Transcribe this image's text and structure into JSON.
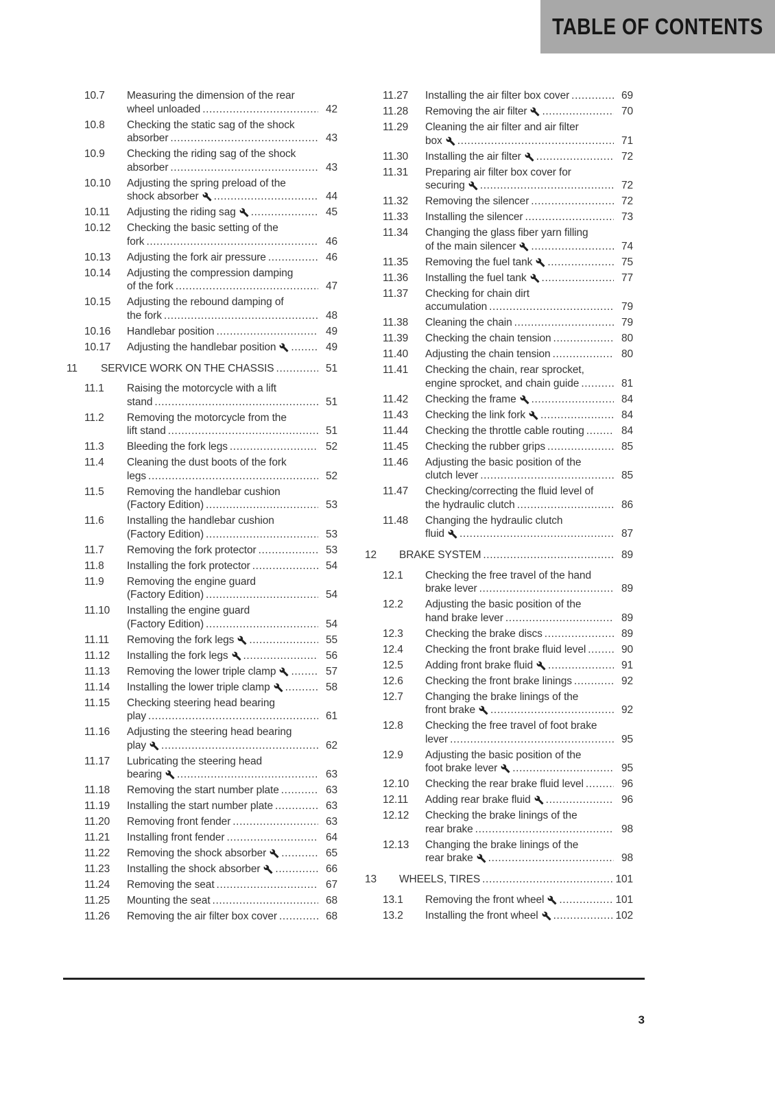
{
  "header": {
    "title": "TABLE OF CONTENTS"
  },
  "page_number": "3",
  "icons": {
    "wrench": "wrench-icon"
  },
  "columns": {
    "left": [
      {
        "type": "entry",
        "num": "10.7",
        "lines": [
          "Measuring the dimension of the rear",
          "wheel unloaded"
        ],
        "wrench": false,
        "page": "42"
      },
      {
        "type": "entry",
        "num": "10.8",
        "lines": [
          "Checking the static sag of the shock",
          "absorber"
        ],
        "wrench": false,
        "page": "43"
      },
      {
        "type": "entry",
        "num": "10.9",
        "lines": [
          "Checking the riding sag of the shock",
          "absorber"
        ],
        "wrench": false,
        "page": "43"
      },
      {
        "type": "entry",
        "num": "10.10",
        "lines": [
          "Adjusting the spring preload of the",
          "shock absorber"
        ],
        "wrench": true,
        "page": "44"
      },
      {
        "type": "entry",
        "num": "10.11",
        "lines": [
          "Adjusting the riding sag"
        ],
        "wrench": true,
        "page": "45"
      },
      {
        "type": "entry",
        "num": "10.12",
        "lines": [
          "Checking the basic setting of the",
          "fork"
        ],
        "wrench": false,
        "page": "46"
      },
      {
        "type": "entry",
        "num": "10.13",
        "lines": [
          "Adjusting the fork air pressure"
        ],
        "wrench": false,
        "page": "46"
      },
      {
        "type": "entry",
        "num": "10.14",
        "lines": [
          "Adjusting the compression damping",
          "of the fork"
        ],
        "wrench": false,
        "page": "47"
      },
      {
        "type": "entry",
        "num": "10.15",
        "lines": [
          "Adjusting the rebound damping of",
          "the fork"
        ],
        "wrench": false,
        "page": "48"
      },
      {
        "type": "entry",
        "num": "10.16",
        "lines": [
          "Handlebar position"
        ],
        "wrench": false,
        "page": "49"
      },
      {
        "type": "entry",
        "num": "10.17",
        "lines": [
          "Adjusting the handlebar position"
        ],
        "wrench": true,
        "page": "49"
      },
      {
        "type": "chapter",
        "num": "11",
        "title": "SERVICE WORK ON THE CHASSIS",
        "page": "51"
      },
      {
        "type": "entry",
        "num": "11.1",
        "lines": [
          "Raising the motorcycle with a lift",
          "stand"
        ],
        "wrench": false,
        "page": "51"
      },
      {
        "type": "entry",
        "num": "11.2",
        "lines": [
          "Removing the motorcycle from the",
          "lift stand"
        ],
        "wrench": false,
        "page": "51"
      },
      {
        "type": "entry",
        "num": "11.3",
        "lines": [
          "Bleeding the fork legs"
        ],
        "wrench": false,
        "page": "52"
      },
      {
        "type": "entry",
        "num": "11.4",
        "lines": [
          "Cleaning the dust boots of the fork",
          "legs"
        ],
        "wrench": false,
        "page": "52"
      },
      {
        "type": "entry",
        "num": "11.5",
        "lines": [
          "Removing the handlebar cushion",
          "(Factory Edition)"
        ],
        "wrench": false,
        "page": "53"
      },
      {
        "type": "entry",
        "num": "11.6",
        "lines": [
          "Installing the handlebar cushion",
          "(Factory Edition)"
        ],
        "wrench": false,
        "page": "53"
      },
      {
        "type": "entry",
        "num": "11.7",
        "lines": [
          "Removing the fork protector"
        ],
        "wrench": false,
        "page": "53"
      },
      {
        "type": "entry",
        "num": "11.8",
        "lines": [
          "Installing the fork protector"
        ],
        "wrench": false,
        "page": "54"
      },
      {
        "type": "entry",
        "num": "11.9",
        "lines": [
          "Removing the engine guard",
          "(Factory Edition)"
        ],
        "wrench": false,
        "page": "54"
      },
      {
        "type": "entry",
        "num": "11.10",
        "lines": [
          "Installing the engine guard",
          "(Factory Edition)"
        ],
        "wrench": false,
        "page": "54"
      },
      {
        "type": "entry",
        "num": "11.11",
        "lines": [
          "Removing the fork legs"
        ],
        "wrench": true,
        "page": "55"
      },
      {
        "type": "entry",
        "num": "11.12",
        "lines": [
          "Installing the fork legs"
        ],
        "wrench": true,
        "page": "56"
      },
      {
        "type": "entry",
        "num": "11.13",
        "lines": [
          "Removing the lower triple clamp"
        ],
        "wrench": true,
        "page": "57"
      },
      {
        "type": "entry",
        "num": "11.14",
        "lines": [
          "Installing the lower triple clamp"
        ],
        "wrench": true,
        "page": "58"
      },
      {
        "type": "entry",
        "num": "11.15",
        "lines": [
          "Checking steering head bearing",
          "play"
        ],
        "wrench": false,
        "page": "61"
      },
      {
        "type": "entry",
        "num": "11.16",
        "lines": [
          "Adjusting the steering head bearing",
          "play"
        ],
        "wrench": true,
        "page": "62"
      },
      {
        "type": "entry",
        "num": "11.17",
        "lines": [
          "Lubricating the steering head",
          "bearing"
        ],
        "wrench": true,
        "page": "63"
      },
      {
        "type": "entry",
        "num": "11.18",
        "lines": [
          "Removing the start number plate"
        ],
        "wrench": false,
        "page": "63"
      },
      {
        "type": "entry",
        "num": "11.19",
        "lines": [
          "Installing the start number plate"
        ],
        "wrench": false,
        "page": "63"
      },
      {
        "type": "entry",
        "num": "11.20",
        "lines": [
          "Removing front fender"
        ],
        "wrench": false,
        "page": "63"
      },
      {
        "type": "entry",
        "num": "11.21",
        "lines": [
          "Installing front fender"
        ],
        "wrench": false,
        "page": "64"
      },
      {
        "type": "entry",
        "num": "11.22",
        "lines": [
          "Removing the shock absorber"
        ],
        "wrench": true,
        "page": "65"
      },
      {
        "type": "entry",
        "num": "11.23",
        "lines": [
          "Installing the shock absorber"
        ],
        "wrench": true,
        "page": "66"
      },
      {
        "type": "entry",
        "num": "11.24",
        "lines": [
          "Removing the seat"
        ],
        "wrench": false,
        "page": "67"
      },
      {
        "type": "entry",
        "num": "11.25",
        "lines": [
          "Mounting the seat"
        ],
        "wrench": false,
        "page": "68"
      },
      {
        "type": "entry",
        "num": "11.26",
        "lines": [
          "Removing the air filter box cover"
        ],
        "wrench": false,
        "page": "68"
      }
    ],
    "right": [
      {
        "type": "entry",
        "num": "11.27",
        "lines": [
          "Installing the air filter box cover"
        ],
        "wrench": false,
        "page": "69"
      },
      {
        "type": "entry",
        "num": "11.28",
        "lines": [
          "Removing the air filter"
        ],
        "wrench": true,
        "page": "70"
      },
      {
        "type": "entry",
        "num": "11.29",
        "lines": [
          "Cleaning the air filter and air filter",
          "box"
        ],
        "wrench": true,
        "page": "71"
      },
      {
        "type": "entry",
        "num": "11.30",
        "lines": [
          "Installing the air filter"
        ],
        "wrench": true,
        "page": "72"
      },
      {
        "type": "entry",
        "num": "11.31",
        "lines": [
          "Preparing air filter box cover for",
          "securing"
        ],
        "wrench": true,
        "page": "72"
      },
      {
        "type": "entry",
        "num": "11.32",
        "lines": [
          "Removing the silencer"
        ],
        "wrench": false,
        "page": "72"
      },
      {
        "type": "entry",
        "num": "11.33",
        "lines": [
          "Installing the silencer"
        ],
        "wrench": false,
        "page": "73"
      },
      {
        "type": "entry",
        "num": "11.34",
        "lines": [
          "Changing the glass fiber yarn filling",
          "of the main silencer"
        ],
        "wrench": true,
        "page": "74"
      },
      {
        "type": "entry",
        "num": "11.35",
        "lines": [
          "Removing the fuel tank"
        ],
        "wrench": true,
        "page": "75"
      },
      {
        "type": "entry",
        "num": "11.36",
        "lines": [
          "Installing the fuel tank"
        ],
        "wrench": true,
        "page": "77"
      },
      {
        "type": "entry",
        "num": "11.37",
        "lines": [
          "Checking for chain dirt",
          "accumulation"
        ],
        "wrench": false,
        "page": "79"
      },
      {
        "type": "entry",
        "num": "11.38",
        "lines": [
          "Cleaning the chain"
        ],
        "wrench": false,
        "page": "79"
      },
      {
        "type": "entry",
        "num": "11.39",
        "lines": [
          "Checking the chain tension"
        ],
        "wrench": false,
        "page": "80"
      },
      {
        "type": "entry",
        "num": "11.40",
        "lines": [
          "Adjusting the chain tension"
        ],
        "wrench": false,
        "page": "80"
      },
      {
        "type": "entry",
        "num": "11.41",
        "lines": [
          "Checking the chain, rear sprocket,",
          "engine sprocket, and chain guide"
        ],
        "wrench": false,
        "page": "81"
      },
      {
        "type": "entry",
        "num": "11.42",
        "lines": [
          "Checking the frame"
        ],
        "wrench": true,
        "page": "84"
      },
      {
        "type": "entry",
        "num": "11.43",
        "lines": [
          "Checking the link fork"
        ],
        "wrench": true,
        "page": "84"
      },
      {
        "type": "entry",
        "num": "11.44",
        "lines": [
          "Checking the throttle cable routing"
        ],
        "wrench": false,
        "page": "84"
      },
      {
        "type": "entry",
        "num": "11.45",
        "lines": [
          "Checking the rubber grips"
        ],
        "wrench": false,
        "page": "85"
      },
      {
        "type": "entry",
        "num": "11.46",
        "lines": [
          "Adjusting the basic position of the",
          "clutch lever"
        ],
        "wrench": false,
        "page": "85"
      },
      {
        "type": "entry",
        "num": "11.47",
        "lines": [
          "Checking/correcting the fluid level of",
          "the hydraulic clutch"
        ],
        "wrench": false,
        "page": "86"
      },
      {
        "type": "entry",
        "num": "11.48",
        "lines": [
          "Changing the hydraulic clutch",
          "fluid"
        ],
        "wrench": true,
        "page": "87"
      },
      {
        "type": "chapter",
        "num": "12",
        "title": "BRAKE SYSTEM",
        "page": "89"
      },
      {
        "type": "entry",
        "num": "12.1",
        "lines": [
          "Checking the free travel of the hand",
          "brake lever"
        ],
        "wrench": false,
        "page": "89"
      },
      {
        "type": "entry",
        "num": "12.2",
        "lines": [
          "Adjusting the basic position of the",
          "hand brake lever"
        ],
        "wrench": false,
        "page": "89"
      },
      {
        "type": "entry",
        "num": "12.3",
        "lines": [
          "Checking the brake discs"
        ],
        "wrench": false,
        "page": "89"
      },
      {
        "type": "entry",
        "num": "12.4",
        "lines": [
          "Checking the front brake fluid level"
        ],
        "wrench": false,
        "page": "90"
      },
      {
        "type": "entry",
        "num": "12.5",
        "lines": [
          "Adding front brake fluid"
        ],
        "wrench": true,
        "page": "91"
      },
      {
        "type": "entry",
        "num": "12.6",
        "lines": [
          "Checking the front brake linings"
        ],
        "wrench": false,
        "page": "92"
      },
      {
        "type": "entry",
        "num": "12.7",
        "lines": [
          "Changing the brake linings of the",
          "front brake"
        ],
        "wrench": true,
        "page": "92"
      },
      {
        "type": "entry",
        "num": "12.8",
        "lines": [
          "Checking the free travel of foot brake",
          "lever"
        ],
        "wrench": false,
        "page": "95"
      },
      {
        "type": "entry",
        "num": "12.9",
        "lines": [
          "Adjusting the basic position of the",
          "foot brake lever"
        ],
        "wrench": true,
        "page": "95"
      },
      {
        "type": "entry",
        "num": "12.10",
        "lines": [
          "Checking the rear brake fluid level"
        ],
        "wrench": false,
        "page": "96"
      },
      {
        "type": "entry",
        "num": "12.11",
        "lines": [
          "Adding rear brake fluid"
        ],
        "wrench": true,
        "page": "96"
      },
      {
        "type": "entry",
        "num": "12.12",
        "lines": [
          "Checking the brake linings of the",
          "rear brake"
        ],
        "wrench": false,
        "page": "98"
      },
      {
        "type": "entry",
        "num": "12.13",
        "lines": [
          "Changing the brake linings of the",
          "rear brake"
        ],
        "wrench": true,
        "page": "98"
      },
      {
        "type": "chapter",
        "num": "13",
        "title": "WHEELS, TIRES",
        "page": "101"
      },
      {
        "type": "entry",
        "num": "13.1",
        "lines": [
          "Removing the front wheel"
        ],
        "wrench": true,
        "page": "101"
      },
      {
        "type": "entry",
        "num": "13.2",
        "lines": [
          "Installing the front wheel"
        ],
        "wrench": true,
        "page": "102"
      }
    ]
  }
}
